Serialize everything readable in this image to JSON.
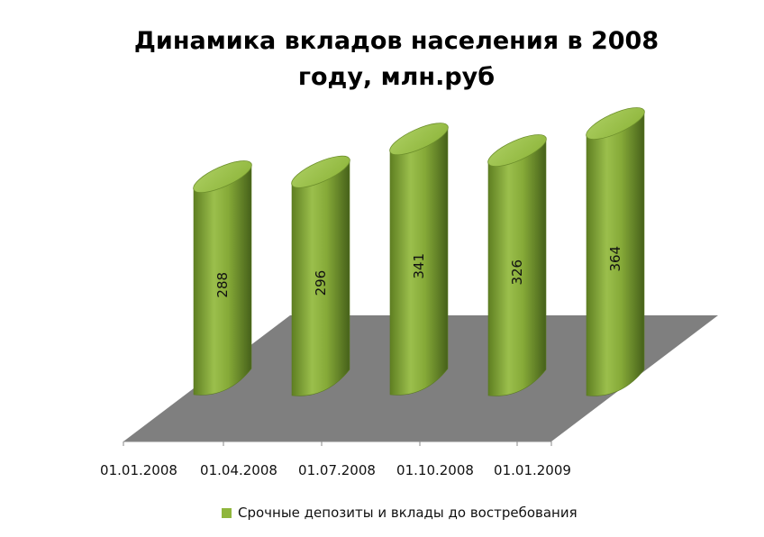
{
  "chart_data": {
    "type": "bar",
    "style": "3d-cylinder",
    "title": "Динамика вкладов населения в 2008 году, млн.руб",
    "title_lines": [
      "Динамика вкладов населения в 2008",
      "году, млн.руб"
    ],
    "categories": [
      "01.01.2008",
      "01.04.2008",
      "01.07.2008",
      "01.10.2008",
      "01.01.2009"
    ],
    "series": [
      {
        "name": "Срочные депозиты и вклады до востребования",
        "values": [
          288,
          296,
          341,
          326,
          364
        ],
        "color": "#8fb63c"
      }
    ],
    "data_labels": [
      "288",
      "296",
      "341",
      "326",
      "364"
    ],
    "xlabel": "",
    "ylabel": "",
    "grid": false,
    "legend": "bottom",
    "floor_color": "#7f7f7f"
  }
}
